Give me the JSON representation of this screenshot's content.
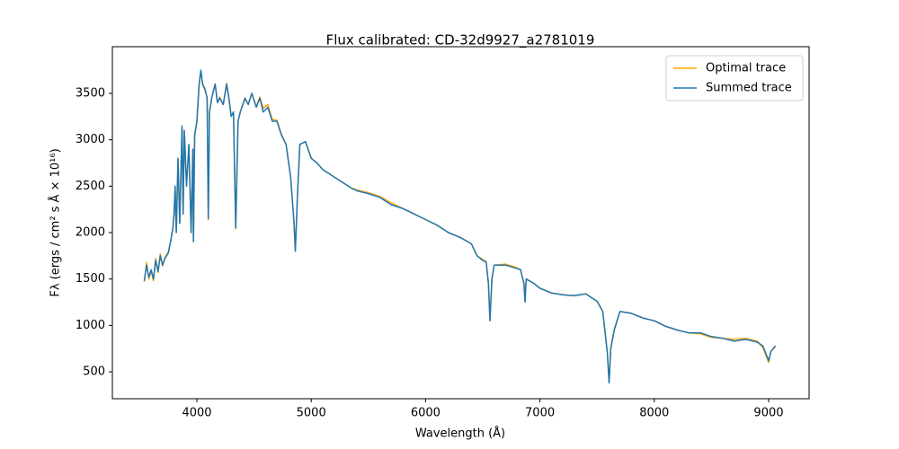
{
  "chart_data": {
    "type": "line",
    "title": "Flux calibrated: CD-32d9927_a2781019",
    "xlabel": "Wavelength (Å)",
    "ylabel": "Fλ (ergs / cm² s Å × 10¹⁶)",
    "x": [
      3540,
      3560,
      3580,
      3600,
      3620,
      3640,
      3660,
      3680,
      3700,
      3720,
      3750,
      3770,
      3790,
      3800,
      3810,
      3820,
      3835,
      3850,
      3870,
      3880,
      3890,
      3910,
      3930,
      3950,
      3965,
      3970,
      3980,
      4000,
      4020,
      4035,
      4050,
      4070,
      4090,
      4100,
      4110,
      4130,
      4160,
      4180,
      4200,
      4230,
      4260,
      4280,
      4300,
      4320,
      4340,
      4360,
      4380,
      4420,
      4450,
      4480,
      4520,
      4550,
      4580,
      4620,
      4660,
      4700,
      4740,
      4780,
      4820,
      4850,
      4861,
      4880,
      4900,
      4950,
      5000,
      5050,
      5100,
      5150,
      5200,
      5250,
      5300,
      5350,
      5400,
      5500,
      5600,
      5700,
      5800,
      5900,
      6000,
      6100,
      6200,
      6300,
      6400,
      6450,
      6500,
      6530,
      6550,
      6563,
      6580,
      6600,
      6700,
      6780,
      6830,
      6860,
      6870,
      6880,
      6950,
      7000,
      7100,
      7200,
      7300,
      7400,
      7500,
      7550,
      7590,
      7605,
      7620,
      7650,
      7700,
      7800,
      7900,
      8000,
      8100,
      8200,
      8300,
      8400,
      8500,
      8600,
      8700,
      8800,
      8900,
      8950,
      9000,
      9020,
      9060
    ],
    "series": [
      {
        "name": "Optimal trace",
        "color": "#ffa500",
        "values": [
          1470,
          1680,
          1500,
          1590,
          1480,
          1720,
          1570,
          1770,
          1640,
          1730,
          1790,
          1900,
          2040,
          2200,
          2480,
          2000,
          2790,
          2100,
          3130,
          2200,
          3090,
          2500,
          2940,
          2000,
          2880,
          1900,
          3040,
          3190,
          3590,
          3740,
          3590,
          3540,
          3450,
          2140,
          3300,
          3450,
          3600,
          3400,
          3460,
          3380,
          3610,
          3450,
          3260,
          3300,
          2040,
          3200,
          3300,
          3440,
          3390,
          3500,
          3360,
          3460,
          3340,
          3380,
          3220,
          3210,
          3060,
          2950,
          2600,
          2100,
          1800,
          2400,
          2950,
          2980,
          2800,
          2750,
          2680,
          2640,
          2600,
          2560,
          2520,
          2480,
          2460,
          2430,
          2390,
          2320,
          2260,
          2200,
          2140,
          2080,
          2000,
          1950,
          1880,
          1750,
          1710,
          1690,
          1450,
          1060,
          1500,
          1650,
          1660,
          1630,
          1600,
          1460,
          1270,
          1500,
          1450,
          1400,
          1350,
          1330,
          1320,
          1340,
          1260,
          1150,
          710,
          390,
          760,
          960,
          1150,
          1130,
          1080,
          1050,
          990,
          950,
          920,
          910,
          870,
          860,
          850,
          860,
          830,
          760,
          600,
          720,
          770
        ]
      },
      {
        "name": "Summed trace",
        "color": "#1f77b4",
        "values": [
          1480,
          1650,
          1520,
          1600,
          1500,
          1700,
          1580,
          1750,
          1650,
          1720,
          1780,
          1900,
          2050,
          2200,
          2500,
          2000,
          2800,
          2100,
          3150,
          2200,
          3100,
          2500,
          2950,
          2000,
          2900,
          1900,
          3050,
          3200,
          3600,
          3750,
          3600,
          3550,
          3450,
          2150,
          3300,
          3450,
          3600,
          3400,
          3450,
          3380,
          3600,
          3450,
          3250,
          3300,
          2050,
          3200,
          3300,
          3450,
          3380,
          3500,
          3350,
          3450,
          3300,
          3350,
          3200,
          3200,
          3050,
          2950,
          2600,
          2100,
          1800,
          2400,
          2950,
          2980,
          2800,
          2750,
          2680,
          2640,
          2600,
          2560,
          2520,
          2480,
          2450,
          2420,
          2380,
          2300,
          2260,
          2200,
          2140,
          2080,
          2000,
          1950,
          1880,
          1750,
          1700,
          1680,
          1450,
          1050,
          1500,
          1650,
          1650,
          1620,
          1600,
          1450,
          1250,
          1500,
          1450,
          1400,
          1350,
          1330,
          1320,
          1340,
          1260,
          1150,
          700,
          380,
          750,
          950,
          1150,
          1130,
          1080,
          1050,
          990,
          950,
          920,
          920,
          880,
          860,
          830,
          850,
          820,
          780,
          620,
          720,
          780
        ]
      }
    ],
    "xlim": [
      3261,
      9354
    ],
    "ylim": [
      210,
      4003
    ],
    "xticks": [
      4000,
      5000,
      6000,
      7000,
      8000,
      9000
    ],
    "yticks": [
      500,
      1000,
      1500,
      2000,
      2500,
      3000,
      3500
    ],
    "legend": "upper right"
  }
}
